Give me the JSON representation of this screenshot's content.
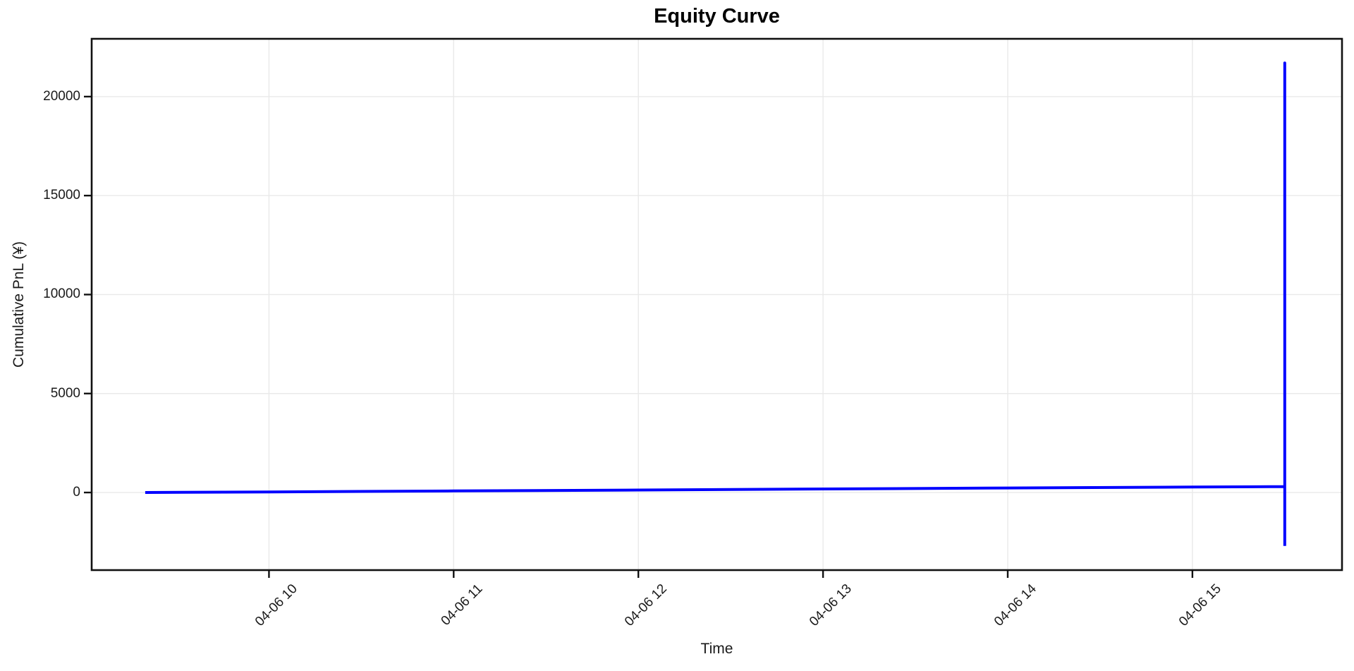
{
  "page": {
    "background": "#ffffff"
  },
  "chart_data": {
    "type": "line",
    "title": "Equity Curve",
    "xlabel": "Time",
    "ylabel": "Cumulative PnL (¥)",
    "x_tick_labels": [
      "04-06 10",
      "04-06 11",
      "04-06 12",
      "04-06 13",
      "04-06 14",
      "04-06 15"
    ],
    "x_tick_hours": [
      10,
      11,
      12,
      13,
      14,
      15
    ],
    "y_tick_labels": [
      "0",
      "5000",
      "10000",
      "15000",
      "20000"
    ],
    "y_tick_values": [
      0,
      5000,
      10000,
      15000,
      20000
    ],
    "xlim_hours": [
      9.04,
      15.81
    ],
    "ylim": [
      -3920,
      22920
    ],
    "grid": true,
    "legend": "none",
    "style": {
      "line_color": "#0000ff",
      "line_width": 4,
      "grid_color": "#e9e9e9",
      "spine_color": "#111111",
      "text_color": "#1a1a1a"
    },
    "series": [
      {
        "name": "Cumulative PnL",
        "points": [
          [
            9.33,
            0
          ],
          [
            10.0,
            30
          ],
          [
            11.0,
            80
          ],
          [
            12.0,
            125
          ],
          [
            13.0,
            180
          ],
          [
            14.0,
            230
          ],
          [
            15.0,
            275
          ],
          [
            15.5,
            300
          ],
          [
            15.5,
            21700
          ],
          [
            15.5,
            -2700
          ]
        ]
      }
    ]
  }
}
